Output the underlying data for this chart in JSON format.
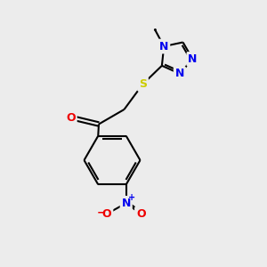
{
  "bg_color": "#ececec",
  "atom_colors": {
    "C": "#000000",
    "N": "#0000ee",
    "O": "#ee0000",
    "S": "#cccc00"
  },
  "bond_color": "#000000",
  "bond_width": 1.5,
  "doffset": 0.08,
  "font_size_atom": 9,
  "font_size_methyl": 8.5,
  "xlim": [
    0,
    10
  ],
  "ylim": [
    0,
    10
  ]
}
